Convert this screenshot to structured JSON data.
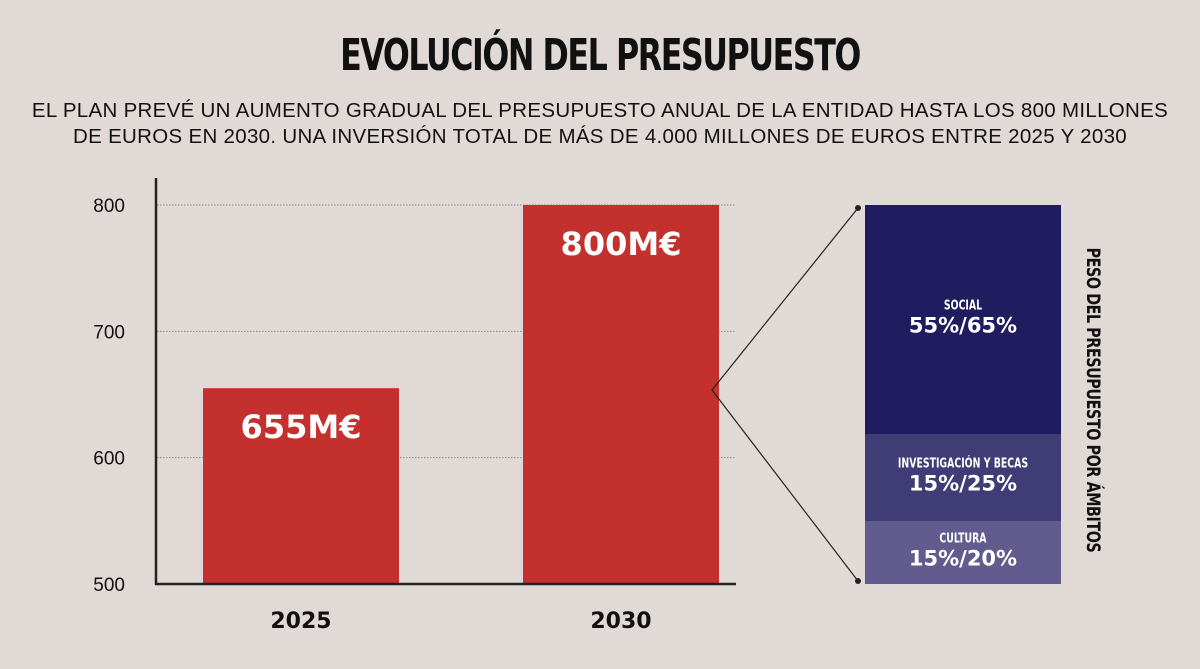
{
  "title": "EVOLUCIÓN DEL PRESUPUESTO",
  "subtitle": [
    "EL PLAN PREVÉ UN AUMENTO GRADUAL DEL PRESUPUESTO ANUAL DE LA ENTIDAD HASTA LOS 800 MILLONES",
    "DE EUROS EN 2030. UNA INVERSIÓN TOTAL DE MÁS DE 4.000 MILLONES DE EUROS ENTRE 2025 Y 2030"
  ],
  "chart_data": [
    {
      "type": "bar",
      "categories": [
        "2025",
        "2030"
      ],
      "values": [
        655,
        800
      ],
      "data_labels": [
        "655M€",
        "800M€"
      ],
      "ylim": [
        500,
        800
      ],
      "yticks": [
        "500",
        "600",
        "700",
        "800"
      ],
      "grid": true,
      "color": "#c4302d"
    },
    {
      "type": "bar",
      "stacked": true,
      "title": "PESO DEL PRESUPUESTO POR ÁMBITOS",
      "segments": [
        {
          "label": "SOCIAL",
          "value": "55%/65%",
          "color": "#1f1c60"
        },
        {
          "label": "INVESTIGACIÓN Y BECAS",
          "value": "15%/25%",
          "color": "#403c76"
        },
        {
          "label": "CULTURA",
          "value": "15%/20%",
          "color": "#625c8e"
        }
      ]
    }
  ]
}
